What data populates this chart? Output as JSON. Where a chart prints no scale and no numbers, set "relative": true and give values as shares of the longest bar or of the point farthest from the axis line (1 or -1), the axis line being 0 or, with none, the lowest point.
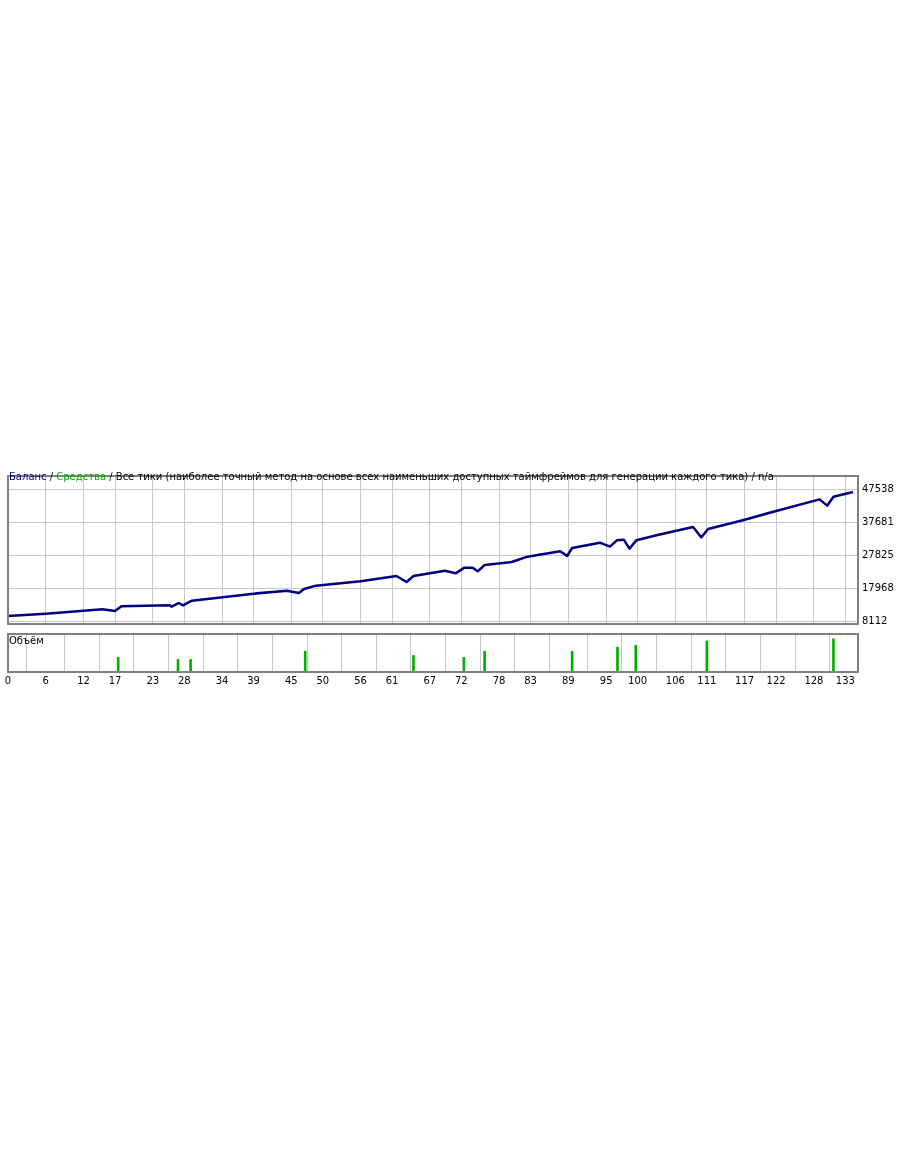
{
  "chart_data": [
    {
      "type": "line",
      "title": "Все тики (наиболее точный метод на основе всех наименьших доступных таймфреймов для генерации каждого тика) / n/a",
      "annotations": [
        "/",
        "/"
      ],
      "x": [
        0,
        6,
        15,
        17,
        18,
        25.7,
        26,
        27.1,
        27.8,
        29.2,
        39,
        44.3,
        46.2,
        47,
        48.9,
        56,
        61.7,
        63.3,
        64.4,
        69.4,
        71.1,
        72.5,
        73.8,
        74.6,
        75.7,
        80,
        82.5,
        87.7,
        88.8,
        89.6,
        94,
        95.6,
        96.7,
        97.8,
        98.7,
        99.8,
        103,
        108.8,
        110.1,
        111.2,
        117,
        122,
        128.9,
        130.1,
        131.1,
        134.2
      ],
      "series": [
        {
          "name": "Баланс",
          "color": "#000080",
          "values": [
            9700,
            10400,
            11700,
            11200,
            12600,
            12900,
            12500,
            13600,
            12900,
            14300,
            16400,
            17300,
            16600,
            17800,
            18800,
            20100,
            21700,
            19900,
            21700,
            23300,
            22500,
            24200,
            24200,
            23100,
            25000,
            25900,
            27500,
            29100,
            27700,
            30100,
            31700,
            30500,
            32400,
            32600,
            29900,
            32400,
            33900,
            36400,
            33300,
            35800,
            38600,
            41200,
            44700,
            42800,
            45500,
            46900
          ]
        },
        {
          "name": "Средства",
          "color": "#00b000",
          "values": [
            null,
            null,
            null,
            null,
            null,
            null,
            null,
            null,
            null,
            null,
            null,
            null,
            null,
            null,
            null,
            null,
            null,
            null,
            null,
            null,
            null,
            null,
            null,
            null,
            null,
            null,
            null,
            null,
            null,
            null,
            null,
            null,
            null,
            null,
            null,
            null,
            null,
            null,
            null,
            null,
            null,
            null,
            null,
            null,
            null,
            null
          ]
        }
      ],
      "xlim": [
        0,
        135
      ],
      "xticks": [
        0,
        6,
        12,
        17,
        23,
        28,
        34,
        39,
        45,
        50,
        56,
        61,
        67,
        72,
        78,
        83,
        89,
        95,
        100,
        106,
        111,
        117,
        122,
        128,
        133
      ],
      "ylim": [
        7300,
        51700
      ],
      "yticks": [
        8112,
        17968,
        27825,
        37681,
        47538
      ],
      "grid": true,
      "legend": "top left",
      "tick_labels": "y",
      "marker": "none",
      "line_style": "solid"
    },
    {
      "type": "bar",
      "title": "Объём",
      "relative": true,
      "color": "#00b000",
      "x": [
        17.5,
        27,
        29,
        47.2,
        64.4,
        72.4,
        75.7,
        89.6,
        96.8,
        99.7,
        111,
        131.1
      ],
      "values": [
        0.44,
        0.38,
        0.38,
        0.63,
        0.5,
        0.44,
        0.63,
        0.63,
        0.75,
        0.81,
        0.94,
        1
      ],
      "xlim": [
        0,
        135
      ],
      "xticks": [
        0,
        6,
        12,
        17,
        23,
        28,
        34,
        39,
        45,
        50,
        56,
        61,
        67,
        72,
        78,
        83,
        89,
        95,
        100,
        106,
        111,
        117,
        122,
        128,
        133
      ],
      "grid": "x",
      "tick_labels": "x"
    }
  ]
}
